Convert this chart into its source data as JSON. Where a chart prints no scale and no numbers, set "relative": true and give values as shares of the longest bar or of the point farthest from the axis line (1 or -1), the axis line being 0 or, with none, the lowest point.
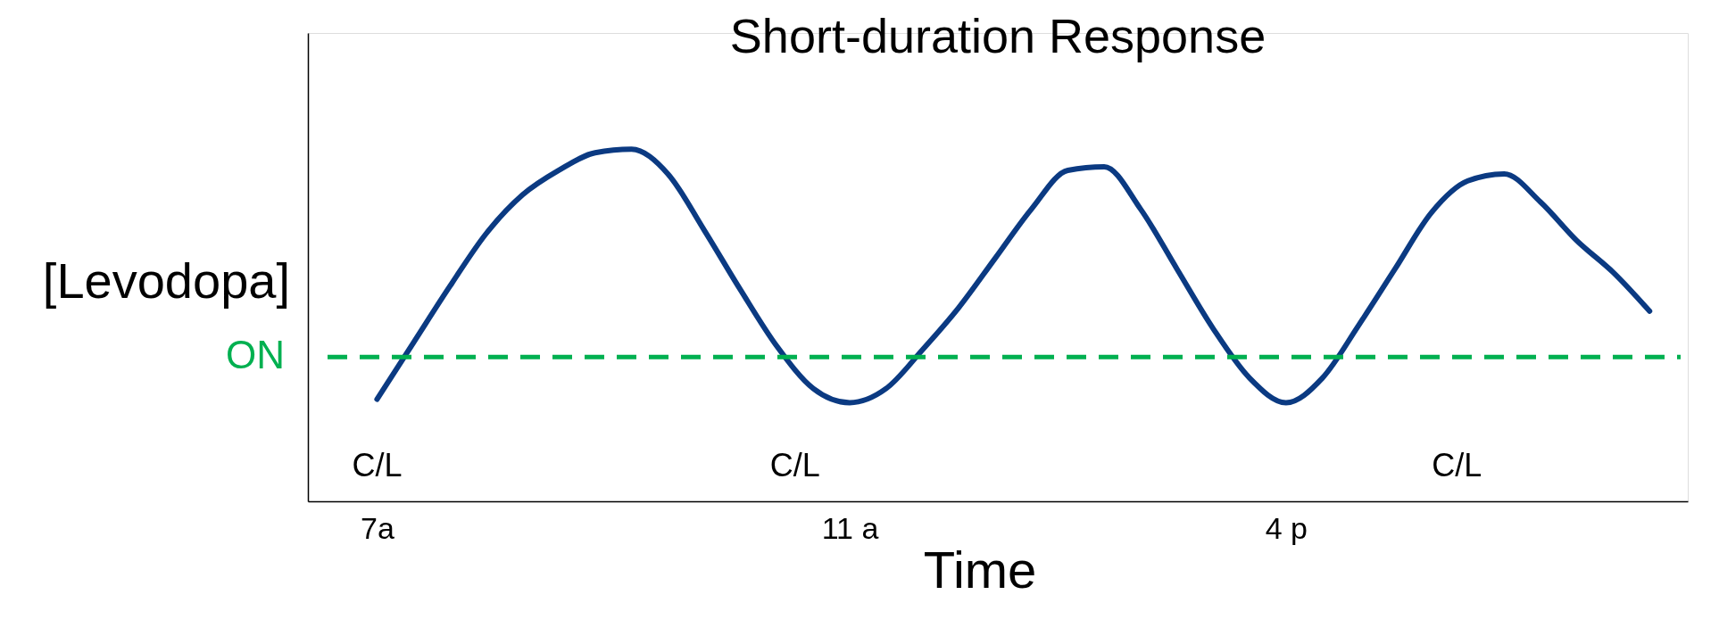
{
  "chart_data": {
    "type": "line",
    "title": "Short-duration Response",
    "ylabel": "[Levodopa]",
    "xlabel": "Time",
    "relative": true,
    "categories": [
      "7a",
      null,
      null,
      null,
      null,
      null,
      null,
      null,
      null,
      null,
      null,
      null,
      null,
      "11 a",
      null,
      null,
      null,
      null,
      null,
      null,
      null,
      null,
      null,
      null,
      null,
      "4 p",
      null,
      null,
      null,
      null,
      null,
      null,
      null,
      null,
      null,
      null
    ],
    "series": [
      {
        "color": "#0b3a82",
        "values": [
          0.29,
          0.45,
          0.61,
          0.76,
          0.87,
          0.94,
          0.99,
          1.0,
          0.93,
          0.77,
          0.6,
          0.44,
          0.32,
          0.28,
          0.32,
          0.43,
          0.55,
          0.69,
          0.83,
          0.94,
          0.95,
          0.83,
          0.66,
          0.49,
          0.35,
          0.28,
          0.35,
          0.5,
          0.66,
          0.82,
          0.91,
          0.93,
          0.85,
          0.74,
          0.65,
          0.54
        ]
      }
    ],
    "ref_lines": [
      {
        "axis": "y",
        "value": 0.41,
        "label": "ON",
        "color": "#00b050",
        "line_style": "dashed"
      }
    ],
    "annotations": [
      "C/L",
      "C/L",
      "C/L"
    ],
    "grid": false,
    "marker": "none",
    "line_style": "solid",
    "tick_labels": "x"
  }
}
